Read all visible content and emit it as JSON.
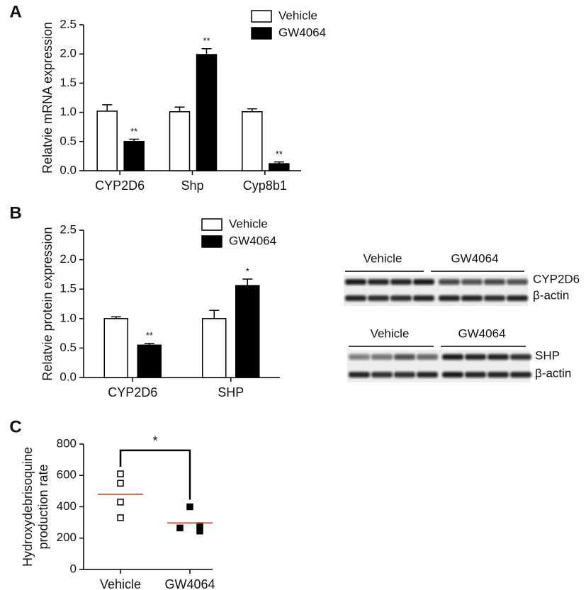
{
  "chart_data": [
    {
      "type": "bar",
      "panel_label": "A",
      "ylabel": "Relatvie mRNA expression",
      "categories": [
        "CYP2D6",
        "Shp",
        "Cyp8b1"
      ],
      "series": [
        {
          "name": "Vehicle",
          "color": "#ffffff",
          "values": [
            1.02,
            1.01,
            1.01
          ],
          "errors": [
            0.11,
            0.08,
            0.05
          ]
        },
        {
          "name": "GW4064",
          "color": "#000000",
          "values": [
            0.5,
            1.99,
            0.12
          ],
          "errors": [
            0.04,
            0.1,
            0.03
          ]
        }
      ],
      "annotations": [
        {
          "series": 1,
          "index": 0,
          "text": "**"
        },
        {
          "series": 1,
          "index": 1,
          "text": "**"
        },
        {
          "series": 1,
          "index": 2,
          "text": "**"
        }
      ],
      "ylim": [
        0,
        2.5
      ],
      "yticks": [
        {
          "value": 0,
          "label": "0.0"
        },
        0.5,
        {
          "value": 1,
          "label": "1.0"
        },
        1.5,
        {
          "value": 2,
          "label": "2.0"
        },
        2.5
      ]
    },
    {
      "type": "bar",
      "panel_label": "B",
      "ylabel": "Relatvie protein expression",
      "categories": [
        "CYP2D6",
        "SHP"
      ],
      "series": [
        {
          "name": "Vehicle",
          "color": "#ffffff",
          "values": [
            1.0,
            1.0
          ],
          "errors": [
            0.03,
            0.14
          ]
        },
        {
          "name": "GW4064",
          "color": "#000000",
          "values": [
            0.55,
            1.56
          ],
          "errors": [
            0.03,
            0.11
          ]
        }
      ],
      "annotations": [
        {
          "series": 1,
          "index": 0,
          "text": "**"
        },
        {
          "series": 1,
          "index": 1,
          "text": "*"
        }
      ],
      "ylim": [
        0,
        2.5
      ],
      "yticks": [
        {
          "value": 0,
          "label": "0.0"
        },
        0.5,
        {
          "value": 1,
          "label": "1.0"
        },
        1.5,
        {
          "value": 2,
          "label": "2.0"
        },
        2.5
      ]
    },
    {
      "type": "dot",
      "panel_label": "C",
      "ylabel_lines": [
        "Hydroxydebrisoquine",
        "production rate"
      ],
      "categories": [
        "Vehicle",
        "GW4064"
      ],
      "groups": [
        {
          "values": [
            610,
            550,
            430,
            330
          ],
          "mean": 480,
          "marker": "open"
        },
        {
          "values": [
            400,
            280,
            265,
            245
          ],
          "mean": 297,
          "marker": "filled"
        }
      ],
      "mean_color": "#d9533f",
      "bracket": {
        "text": "*",
        "y": 760
      },
      "ylim": [
        0,
        800
      ],
      "yticks": [
        0,
        200,
        400,
        600,
        800
      ]
    }
  ],
  "blots": [
    {
      "groups": [
        "Vehicle",
        "GW4064"
      ],
      "rows": [
        "CYP2D6",
        "β-actin"
      ]
    },
    {
      "groups": [
        "Vehicle",
        "GW4064"
      ],
      "rows": [
        "SHP",
        "β-actin"
      ]
    }
  ]
}
